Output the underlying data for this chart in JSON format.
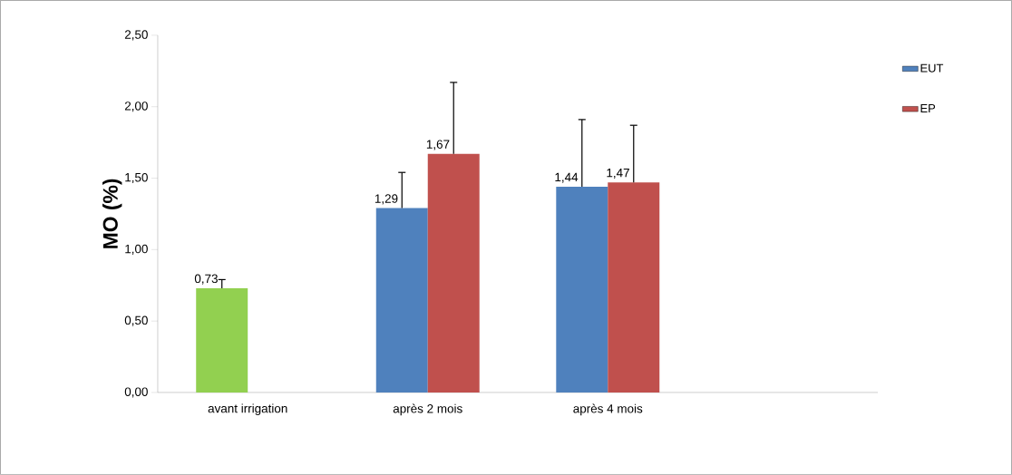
{
  "chart_data": {
    "type": "bar",
    "ylabel": "MO (%)",
    "categories": [
      "avant irrigation",
      "après 2 mois",
      "après 4 mois",
      null
    ],
    "series": [
      {
        "name": "EUT",
        "color": "#4f81bd",
        "colors": [
          "#92d050",
          "#4f81bd",
          "#4f81bd",
          null
        ],
        "values": [
          0.73,
          1.29,
          1.44,
          null
        ],
        "errors": [
          [
            0.73,
            0.79
          ],
          [
            1.29,
            1.54
          ],
          [
            1.44,
            1.91
          ],
          null
        ],
        "value_labels": [
          "0,73",
          "1,29",
          "1,44",
          null
        ]
      },
      {
        "name": "EP",
        "color": "#c0504d",
        "values": [
          null,
          1.67,
          1.47,
          null
        ],
        "errors": [
          null,
          [
            1.67,
            2.17
          ],
          [
            1.47,
            1.87
          ],
          null
        ],
        "value_labels": [
          null,
          "1,67",
          "1,47",
          null
        ]
      }
    ],
    "ylim": [
      0,
      2.5
    ],
    "yticks": [
      {
        "value": 0,
        "label": "0,00"
      },
      {
        "value": 0.5,
        "label": "0,50"
      },
      {
        "value": 1,
        "label": "1,00"
      },
      {
        "value": 1.5,
        "label": "1,50"
      },
      {
        "value": 2,
        "label": "2,00"
      },
      {
        "value": 2.5,
        "label": "2,50"
      }
    ],
    "legend": "right",
    "grid": false
  }
}
